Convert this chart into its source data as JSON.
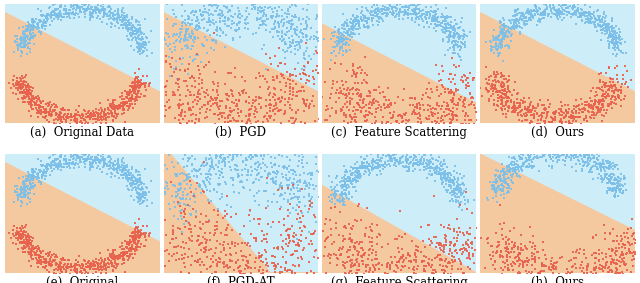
{
  "seed": 42,
  "bg_light_blue": "#cdeef8",
  "bg_peach": "#f5c9a0",
  "color_blue": "#7bbfe8",
  "color_red": "#e8604c",
  "captions": [
    "(a)  Original Data",
    "(b)  PGD",
    "(c)  Feature Scattering",
    "(d)  Ours",
    "(e)  Original",
    "(f)  PGD-AT",
    "(g)  Feature Scattering",
    "(h)  Ours"
  ],
  "caption_fontsize": 8.5,
  "fig_bg": "#ffffff",
  "n_points": 1200,
  "marker_size": 1.5
}
